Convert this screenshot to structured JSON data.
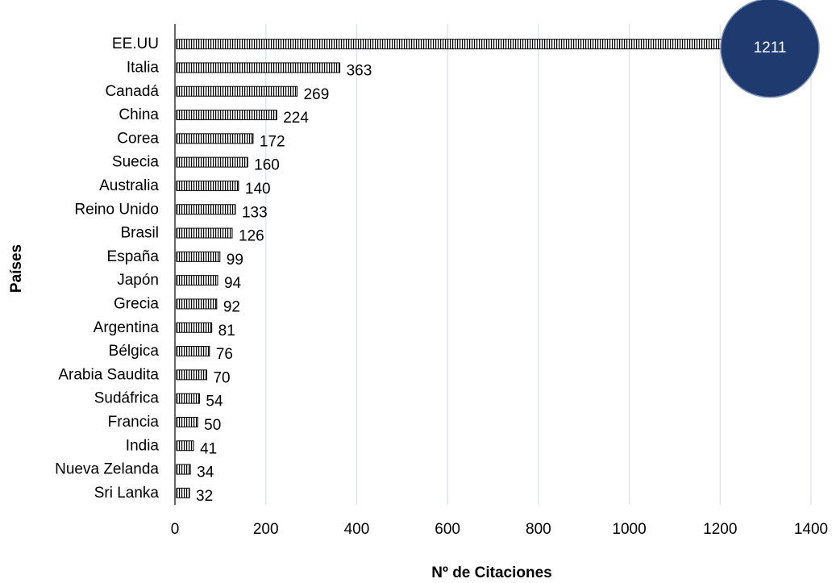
{
  "chart_data": {
    "type": "bar",
    "orientation": "horizontal",
    "categories": [
      "EE.UU",
      "Italia",
      "Canadá",
      "China",
      "Corea",
      "Suecia",
      "Australia",
      "Reino Unido",
      "Brasil",
      "España",
      "Japón",
      "Grecia",
      "Argentina",
      "Bélgica",
      "Arabia Saudita",
      "Sudáfrica",
      "Francia",
      "India",
      "Nueva Zelanda",
      "Sri Lanka"
    ],
    "values": [
      1211,
      363,
      269,
      224,
      172,
      160,
      140,
      133,
      126,
      99,
      94,
      92,
      81,
      76,
      70,
      54,
      50,
      41,
      34,
      32
    ],
    "data_labels": [
      "1211",
      "363",
      "269",
      "224",
      "172",
      "160",
      "140",
      "133",
      "126",
      "99",
      "94",
      "92",
      "81",
      "76",
      "70",
      "54",
      "50",
      "41",
      "34",
      "32"
    ],
    "xlabel": "Nº de Citaciones",
    "ylabel": "Países",
    "xlim": [
      0,
      1400
    ],
    "xticks": [
      0,
      200,
      400,
      600,
      800,
      1000,
      1200,
      1400
    ],
    "xtick_labels": [
      "0",
      "200",
      "400",
      "600",
      "800",
      "1000",
      "1200",
      "1400"
    ],
    "grid": "vertical",
    "legend": "none",
    "highlight": {
      "category": "EE.UU",
      "label": "1211",
      "color": "#1f3a6e"
    },
    "colors": {
      "bar_fill": "#ffffff",
      "bar_pattern": "#000000",
      "gridline": "#d9e2f0",
      "axis": "#000000"
    }
  }
}
